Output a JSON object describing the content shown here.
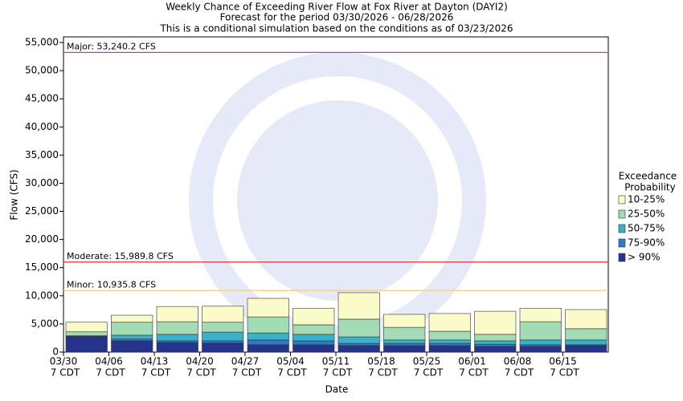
{
  "chart_data": {
    "type": "stacked_bar",
    "title": [
      "Weekly Chance of Exceeding River Flow at Fox River at Dayton (DAYI2)",
      "Forecast for the period 03/30/2026 - 06/28/2026",
      "This is a conditional simulation based on the conditions as of 03/23/2026"
    ],
    "x_label": "Date",
    "y_label": "Flow (CFS)",
    "categories": [
      "03/30",
      "04/06",
      "04/13",
      "04/20",
      "04/27",
      "05/04",
      "05/11",
      "05/18",
      "05/25",
      "06/01",
      "06/08",
      "06/15"
    ],
    "category_time": "7 CDT",
    "legend_title": [
      "Exceedance",
      "Probability"
    ],
    "series": [
      {
        "name": "> 90%",
        "color": "#26338c",
        "values": [
          2700,
          2000,
          1700,
          1600,
          1300,
          1300,
          1150,
          1150,
          1150,
          1000,
          1000,
          1150
        ]
      },
      {
        "name": "75-90%",
        "color": "#2e7bc4",
        "values": [
          100,
          300,
          300,
          400,
          850,
          700,
          400,
          400,
          400,
          400,
          300,
          150
        ]
      },
      {
        "name": "50-75%",
        "color": "#3bb0c9",
        "values": [
          100,
          700,
          1150,
          1550,
          1250,
          1150,
          1150,
          600,
          600,
          600,
          850,
          850
        ]
      },
      {
        "name": "25-50%",
        "color": "#a3dbb5",
        "values": [
          700,
          2300,
          2250,
          1750,
          2850,
          1700,
          3150,
          2250,
          1550,
          1150,
          3250,
          2000
        ]
      },
      {
        "name": "10-25%",
        "color": "#fafbc8",
        "values": [
          1700,
          1250,
          2700,
          2850,
          3300,
          2950,
          4700,
          2300,
          3150,
          4100,
          2400,
          3400
        ]
      }
    ],
    "reference_lines": [
      {
        "value": 53240.2,
        "label": "Major: 53,240.2 CFS",
        "color": "#cc33cc"
      },
      {
        "value": 15989.8,
        "label": "Moderate: 15,989.8 CFS",
        "color": "#dd3333"
      },
      {
        "value": 10935.8,
        "label": "Minor: 10,935.8 CFS",
        "color": "#f0d070"
      }
    ],
    "ylim": [
      0,
      56000
    ],
    "yticks": [
      0,
      {
        "value": 5000,
        "label": "5,000"
      },
      {
        "value": 10000,
        "label": "10,000"
      },
      {
        "value": 15000,
        "label": "15,000"
      },
      {
        "value": 20000,
        "label": "20,000"
      },
      {
        "value": 25000,
        "label": "25,000"
      },
      {
        "value": 30000,
        "label": "30,000"
      },
      {
        "value": 35000,
        "label": "35,000"
      },
      {
        "value": 40000,
        "label": "40,000"
      },
      {
        "value": 45000,
        "label": "45,000"
      },
      {
        "value": 50000,
        "label": "50,000"
      },
      {
        "value": 55000,
        "label": "55,000"
      }
    ]
  }
}
